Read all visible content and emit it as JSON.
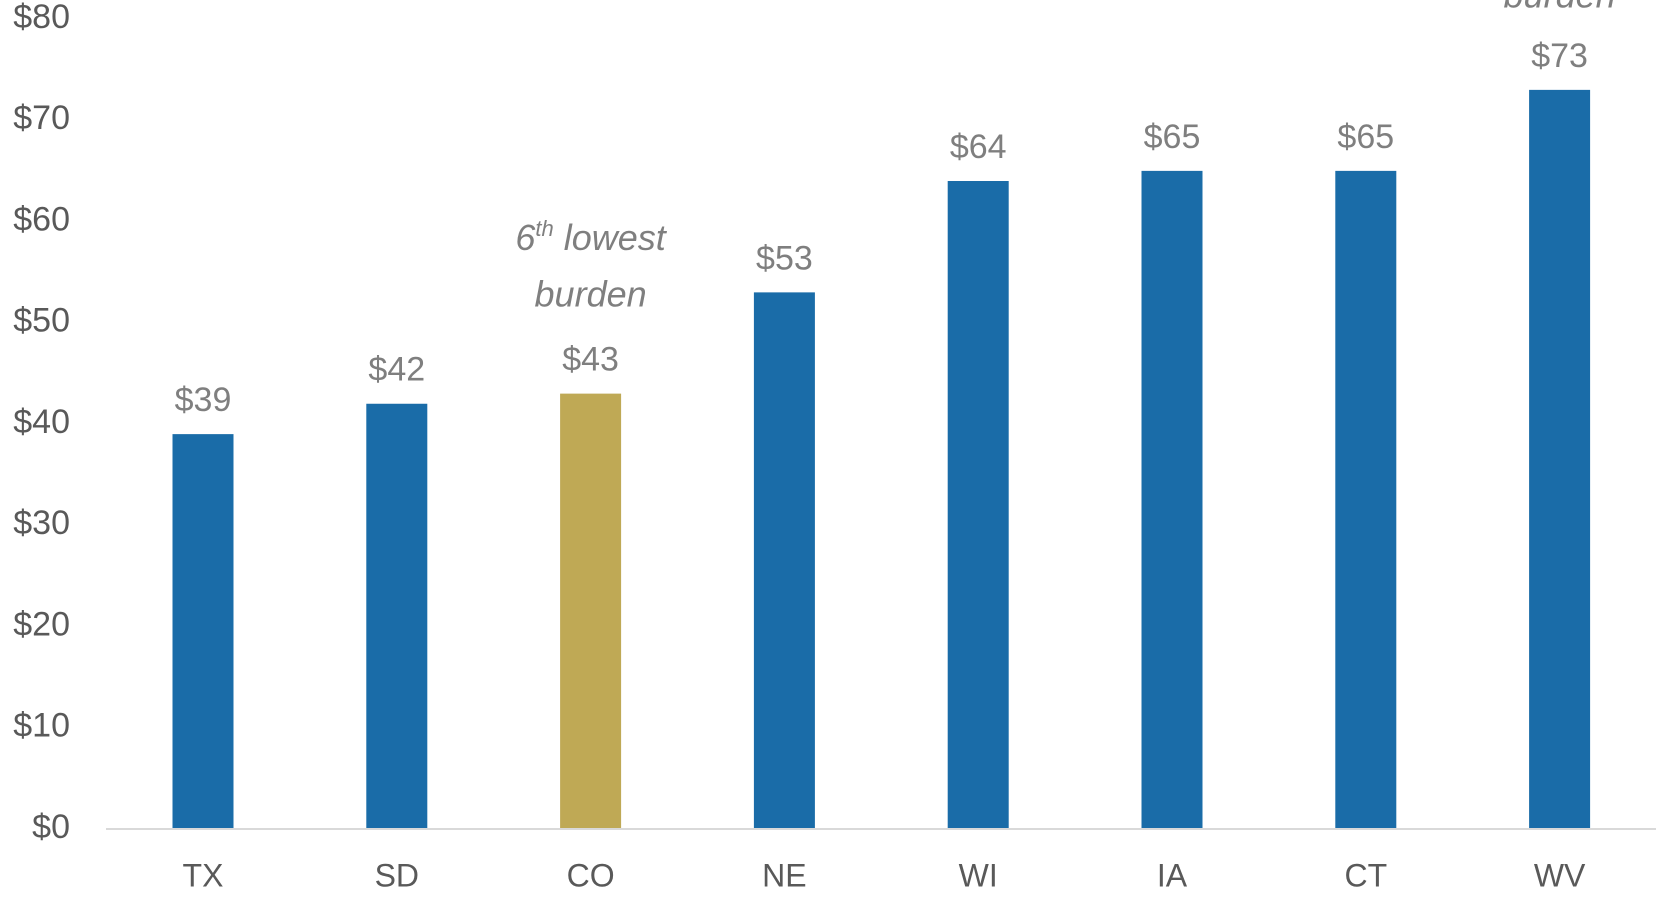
{
  "chart_data": {
    "type": "bar",
    "categories": [
      "TX",
      "SD",
      "CO",
      "NE",
      "WI",
      "IA",
      "CT",
      "WV"
    ],
    "values": [
      39,
      42,
      43,
      53,
      64,
      65,
      65,
      73
    ],
    "value_labels": [
      "$39",
      "$42",
      "$43",
      "$53",
      "$64",
      "$65",
      "$65",
      "$73"
    ],
    "colors": [
      "#1a6ca8",
      "#1a6ca8",
      "#bfa955",
      "#1a6ca8",
      "#1a6ca8",
      "#1a6ca8",
      "#1a6ca8",
      "#1a6ca8"
    ],
    "value_label_colors": [
      "#7f7f7f",
      "#7f7f7f",
      "#bfa955",
      "#7f7f7f",
      "#7f7f7f",
      "#7f7f7f",
      "#7f7f7f",
      "#7f7f7f"
    ],
    "ylim": [
      0,
      80
    ],
    "yticks": [
      {
        "value": 0,
        "label": "$0"
      },
      {
        "value": 10,
        "label": "$10"
      },
      {
        "value": 20,
        "label": "$20"
      },
      {
        "value": 30,
        "label": "$30"
      },
      {
        "value": 40,
        "label": "$40"
      },
      {
        "value": 50,
        "label": "$50"
      },
      {
        "value": 60,
        "label": "$60"
      },
      {
        "value": 70,
        "label": "$70"
      },
      {
        "value": 80,
        "label": "$80"
      }
    ],
    "annotations": [
      {
        "ordinal": "6",
        "suffix": "th",
        "rest": " lowest",
        "line2": "burden"
      },
      {
        "line2": "burden"
      }
    ]
  }
}
